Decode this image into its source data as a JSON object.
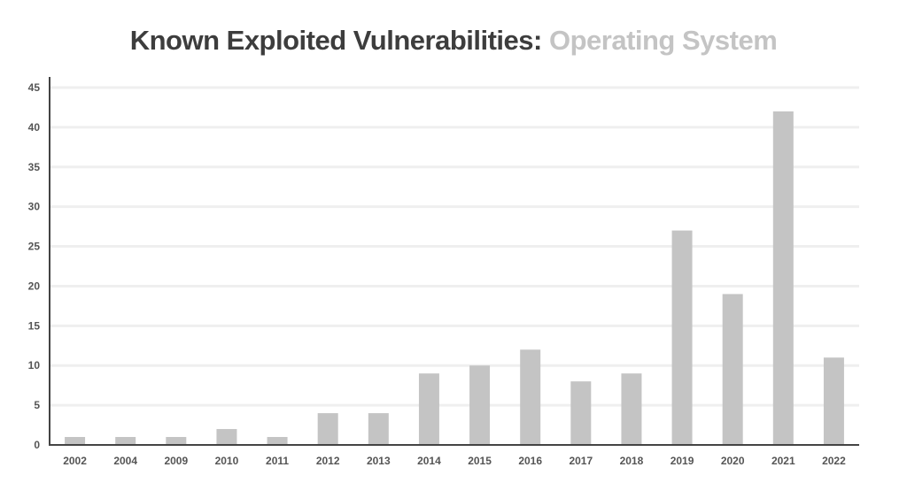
{
  "title": {
    "main": "Known Exploited Vulnerabilities:",
    "sub": "Operating System"
  },
  "chart_data": {
    "type": "bar",
    "categories": [
      "2002",
      "2004",
      "2009",
      "2010",
      "2011",
      "2012",
      "2013",
      "2014",
      "2015",
      "2016",
      "2017",
      "2018",
      "2019",
      "2020",
      "2021",
      "2022"
    ],
    "values": [
      1,
      1,
      1,
      2,
      1,
      4,
      4,
      9,
      10,
      12,
      8,
      9,
      27,
      19,
      42,
      11
    ],
    "xlabel": "",
    "ylabel": "",
    "ylim": [
      0,
      45
    ],
    "yticks": [
      0,
      5,
      10,
      15,
      20,
      25,
      30,
      35,
      40,
      45
    ],
    "grid": true,
    "bar_color": "#c4c4c4",
    "grid_color": "#efefef",
    "axis_color": "#444444"
  }
}
